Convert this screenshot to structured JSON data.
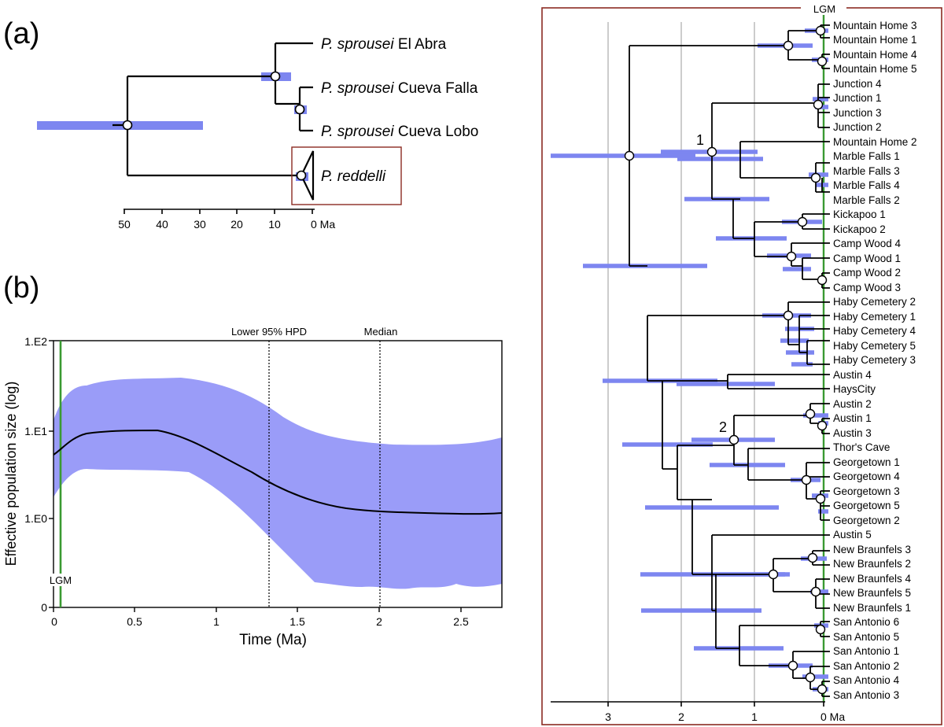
{
  "panel_a": {
    "label": "(a)",
    "taxa": [
      {
        "genus": "P. sprousei",
        "locality": "El Abra"
      },
      {
        "genus": "P. sprousei",
        "locality": "Cueva Falla"
      },
      {
        "genus": "P. sprousei",
        "locality": "Cueva Lobo"
      },
      {
        "genus": "P. reddelli",
        "locality": ""
      }
    ],
    "axis_ticks": [
      "50",
      "40",
      "30",
      "20",
      "10",
      "0 Ma"
    ],
    "colors": {
      "hpd_bar": "#7d86f0",
      "highlight_box": "#8b2b22"
    }
  },
  "panel_b": {
    "label": "(b)",
    "ylabel": "Effective population size (log)",
    "xlabel": "Time (Ma)",
    "lines": {
      "lgm": "LGM",
      "lower_hpd": "Lower 95% HPD",
      "median": "Median"
    },
    "x_ticks": [
      "0",
      "0.5",
      "1",
      "1.5",
      "2",
      "2.5"
    ],
    "y_ticks": [
      "1.E2",
      "1.E1",
      "1.E0",
      "0"
    ],
    "colors": {
      "band": "#9a9cf8",
      "lgm_line": "#3a9a32",
      "curve": "#000000"
    },
    "chart_data": {
      "type": "area",
      "xlabel": "Time (Ma)",
      "ylabel": "Effective population size (log)",
      "xlim": [
        0,
        2.76
      ],
      "yscale": "log",
      "x": [
        0,
        0.1,
        0.2,
        0.3,
        0.5,
        0.65,
        0.8,
        1.0,
        1.2,
        1.4,
        1.6,
        1.8,
        2.0,
        2.2,
        2.4,
        2.6,
        2.76
      ],
      "series": [
        {
          "values": [
            5.0,
            7.5,
            9.0,
            9.4,
            9.7,
            9.8,
            8.8,
            6.4,
            4.0,
            2.5,
            1.7,
            1.35,
            1.2,
            1.15,
            1.12,
            1.1,
            1.12
          ]
        }
      ],
      "reference_lines": {
        "lgm": 0.04,
        "lower_hpd": 1.32,
        "median": 2.01
      }
    }
  },
  "panel_c": {
    "lgm_label": "LGM",
    "axis_ticks": [
      "3",
      "2",
      "1",
      "0 Ma"
    ],
    "node_labels": [
      "1",
      "2"
    ],
    "tips": [
      "Mountain Home 3",
      "Mountain Home 1",
      "Mountain Home 4",
      "Mountain Home 5",
      "Junction 4",
      "Junction 1",
      "Junction 3",
      "Junction 2",
      "Mountain Home 2",
      "Marble Falls 1",
      "Marble Falls 3",
      "Marble Falls 4",
      "Marble Falls 2",
      "Kickapoo 1",
      "Kickapoo 2",
      "Camp Wood 4",
      "Camp Wood 1",
      "Camp Wood 2",
      "Camp Wood 3",
      "Haby Cemetery 2",
      "Haby Cemetery 1",
      "Haby Cemetery 4",
      "Haby Cemetery 5",
      "Haby Cemetery 3",
      "Austin 4",
      "HaysCity",
      "Austin 2",
      "Austin 1",
      "Austin 3",
      "Thor's Cave",
      "Georgetown 1",
      "Georgetown 4",
      "Georgetown 3",
      "Georgetown 5",
      "Georgetown 2",
      "Austin 5",
      "New Braunfels 3",
      "New Braunfels 2",
      "New Braunfels 4",
      "New Braunfels 5",
      "New Braunfels 1",
      "San Antonio 6",
      "San Antonio 5",
      "San Antonio 1",
      "San Antonio 2",
      "San Antonio 4",
      "San Antonio 3"
    ],
    "colors": {
      "frame": "#8b2b22",
      "lgm_line": "#3a9a32",
      "hpd_bar": "#7d86f0"
    }
  }
}
